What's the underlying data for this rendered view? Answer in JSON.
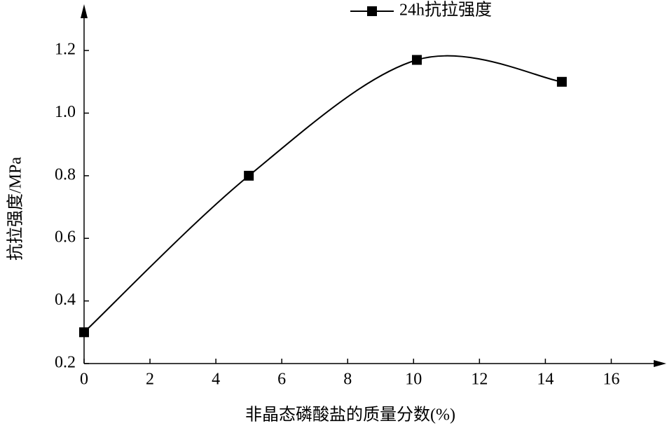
{
  "chart_data": {
    "type": "line",
    "x_label": "非晶态磷酸盐的质量分数(%)",
    "y_label": "抗拉强度/MPa",
    "x": [
      0,
      5,
      10.1,
      14.5
    ],
    "series": [
      {
        "name": "24h抗拉强度",
        "color": "#000000",
        "values": [
          0.3,
          0.8,
          1.17,
          1.1
        ]
      }
    ],
    "xlim": [
      0,
      17.5
    ],
    "xticks": [
      0,
      2,
      4,
      6,
      8,
      10,
      12,
      14,
      16
    ],
    "ylim": [
      0.2,
      1.33
    ],
    "yticks": [
      0.2,
      0.4,
      0.6,
      0.8,
      {
        "value": 1,
        "label": "1.0"
      },
      1.2
    ],
    "smooth": true,
    "legend": "top"
  }
}
